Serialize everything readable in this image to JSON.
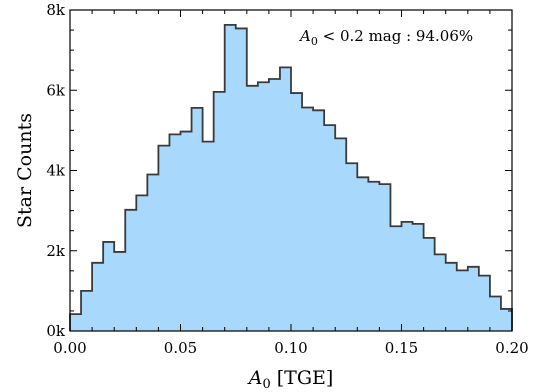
{
  "chart_data": {
    "type": "bar",
    "style": "step-histogram",
    "xlabel_main": "A",
    "xlabel_sub": "0",
    "xlabel_unit": "[TGE]",
    "ylabel": "Star Counts",
    "xlim": [
      0.0,
      0.2
    ],
    "ylim": [
      0,
      8000
    ],
    "x_ticks": [
      0.0,
      0.05,
      0.1,
      0.15,
      0.2
    ],
    "x_tick_labels": [
      "0.00",
      "0.05",
      "0.10",
      "0.15",
      "0.20"
    ],
    "y_ticks": [
      0,
      2000,
      4000,
      6000,
      8000
    ],
    "y_tick_labels": [
      "0k",
      "2k",
      "4k",
      "6k",
      "8k"
    ],
    "bin_width": 0.005,
    "bin_edges_start": 0.0,
    "values": [
      420,
      1000,
      1700,
      2220,
      1970,
      3020,
      3380,
      3900,
      4620,
      4900,
      4970,
      5560,
      4720,
      5960,
      7630,
      7540,
      6110,
      6200,
      6280,
      6570,
      5930,
      5570,
      5500,
      5130,
      4800,
      4180,
      3830,
      3720,
      3660,
      2610,
      2720,
      2670,
      2320,
      1910,
      1700,
      1510,
      1600,
      1380,
      860,
      550
    ],
    "fill_color": "#a8d8fb",
    "edge_color": "#3a3a3a",
    "annotation": {
      "var": "A",
      "sub": "0",
      "rest": " < 0.2 mag :  94.06%"
    }
  }
}
